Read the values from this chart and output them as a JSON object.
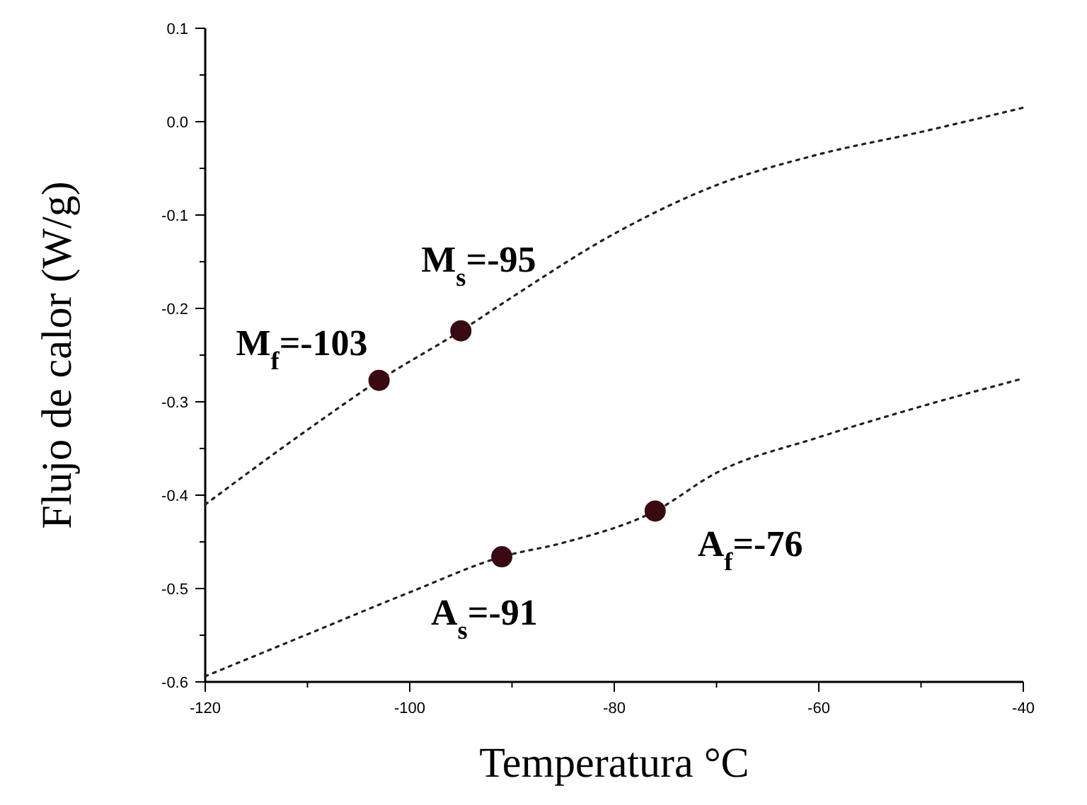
{
  "chart_data": {
    "type": "line",
    "xlabel": "Temperatura °C",
    "ylabel": "Flujo de calor (W/g)",
    "xlim": [
      -120,
      -40
    ],
    "xticks": [
      -120,
      -100,
      -80,
      -60,
      -40
    ],
    "ylim": [
      -0.6,
      0.1
    ],
    "yticks": [
      -0.6,
      -0.5,
      -0.4,
      -0.3,
      -0.2,
      -0.1,
      {
        "value": 0,
        "label": "0.0"
      },
      0.1
    ],
    "grid": false,
    "series": [
      {
        "color": "#222222",
        "line_style": "dotted",
        "marker": "none",
        "x": [
          -120,
          -110,
          -103,
          -95,
          -90,
          -80,
          -70,
          -60,
          -50,
          -40
        ],
        "values": [
          -0.41,
          -0.33,
          -0.277,
          -0.224,
          -0.188,
          -0.12,
          -0.068,
          -0.035,
          -0.011,
          0.015
        ]
      },
      {
        "color": "#222222",
        "line_style": "dotted",
        "marker": "none",
        "x": [
          -120,
          -110,
          -100,
          -91,
          -85,
          -76,
          -70,
          -60,
          -50,
          -40
        ],
        "values": [
          -0.594,
          -0.549,
          -0.504,
          -0.466,
          -0.451,
          -0.417,
          -0.376,
          -0.338,
          -0.305,
          -0.275
        ]
      },
      {
        "type": "scatter",
        "color": "#3a0a14",
        "marker": "circle",
        "x": [
          -103,
          -95,
          -91,
          -76
        ],
        "values": [
          -0.277,
          -0.224,
          -0.466,
          -0.417
        ]
      }
    ],
    "annotations": [
      {
        "text": "M$_{f}$=-103",
        "x": -103,
        "y": -0.277
      },
      {
        "text": "M$_{s}$=-95",
        "x": -95,
        "y": -0.224
      },
      {
        "text": "A$_{s}$=-91",
        "x": -91,
        "y": -0.466
      },
      {
        "text": "A$_{f}$=-76",
        "x": -76,
        "y": -0.417
      }
    ]
  }
}
